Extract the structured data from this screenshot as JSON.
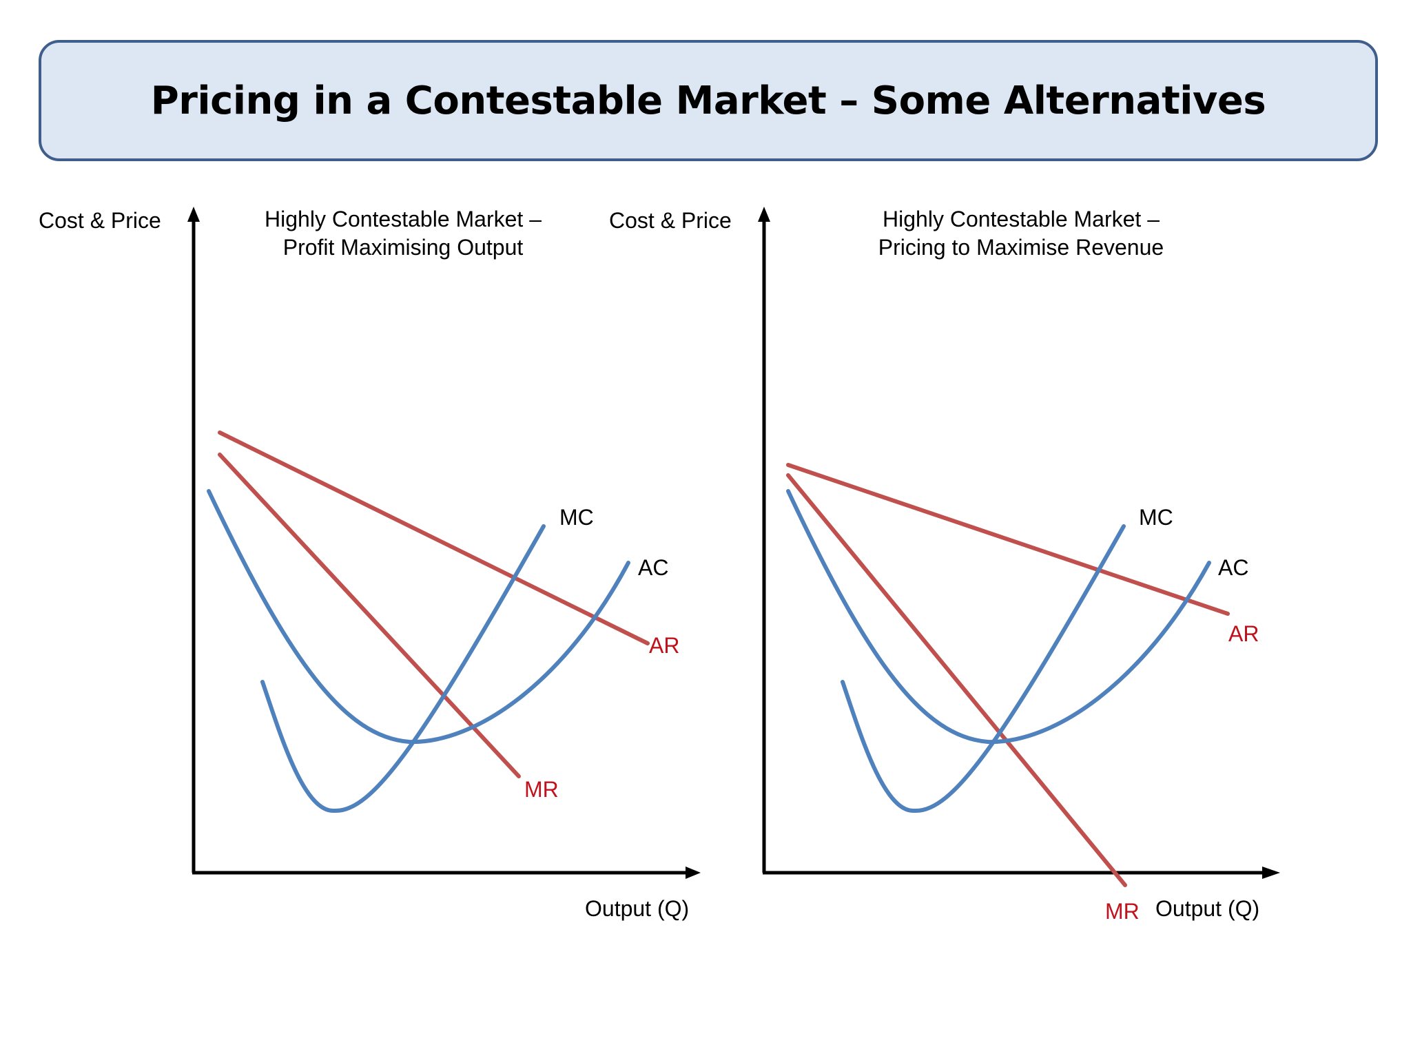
{
  "title": "Pricing in a Contestable Market – Some Alternatives",
  "panels": [
    {
      "heading_line1": "Highly Contestable Market –",
      "heading_line2": "Profit Maximising Output",
      "y_axis_label": "Cost & Price",
      "x_axis_label": "Output (Q)",
      "curves": {
        "mc": "MC",
        "ac": "AC",
        "ar": "AR",
        "mr": "MR"
      }
    },
    {
      "heading_line1": "Highly Contestable Market –",
      "heading_line2": "Pricing to Maximise Revenue",
      "y_axis_label": "Cost & Price",
      "x_axis_label": "Output (Q)",
      "curves": {
        "mc": "MC",
        "ac": "AC",
        "ar": "AR",
        "mr": "MR"
      }
    }
  ],
  "colors": {
    "cost_curves": "#4f81bd",
    "revenue_curves": "#c0504d",
    "revenue_labels": "#c0121c",
    "title_fill": "#dde7f3",
    "title_border": "#3f5e8c"
  }
}
